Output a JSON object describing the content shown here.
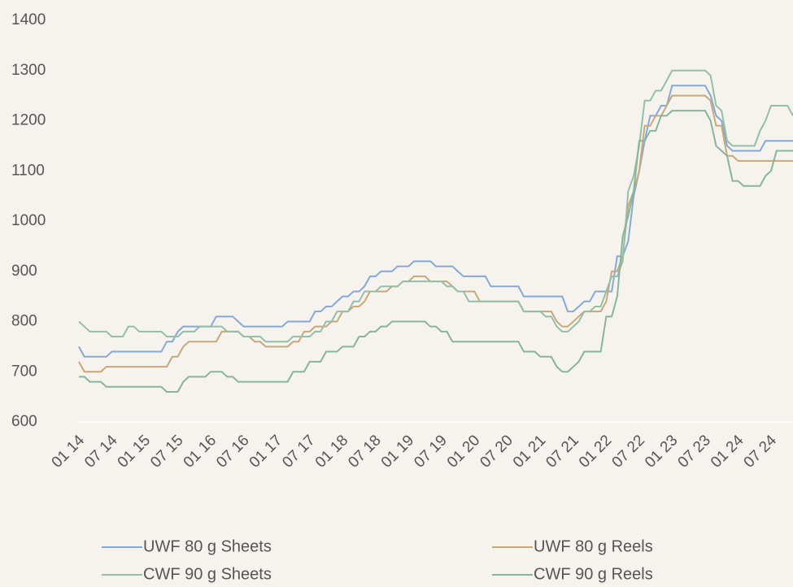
{
  "chart_data": {
    "type": "line",
    "categories": [
      "01 14",
      null,
      null,
      null,
      null,
      null,
      "07 14",
      null,
      null,
      null,
      null,
      null,
      "01 15",
      null,
      null,
      null,
      null,
      null,
      "07 15",
      null,
      null,
      null,
      null,
      null,
      "01 16",
      null,
      null,
      null,
      null,
      null,
      "07 16",
      null,
      null,
      null,
      null,
      null,
      "01 17",
      null,
      null,
      null,
      null,
      null,
      "07 17",
      null,
      null,
      null,
      null,
      null,
      "01 18",
      null,
      null,
      null,
      null,
      null,
      "07 18",
      null,
      null,
      null,
      null,
      null,
      "01 19",
      null,
      null,
      null,
      null,
      null,
      "07 19",
      null,
      null,
      null,
      null,
      null,
      "01 20",
      null,
      null,
      null,
      null,
      null,
      "07 20",
      null,
      null,
      null,
      null,
      null,
      "01 21",
      null,
      null,
      null,
      null,
      null,
      "07 21",
      null,
      null,
      null,
      null,
      null,
      "01 22",
      null,
      null,
      null,
      null,
      null,
      "07 22",
      null,
      null,
      null,
      null,
      null,
      "01 23",
      null,
      null,
      null,
      null,
      null,
      "07 23",
      null,
      null,
      null,
      null,
      null,
      "01 24",
      null,
      null,
      null,
      null,
      null,
      "07 24",
      null,
      null,
      null,
      null
    ],
    "series": [
      {
        "name": "UWF 80 g Sheets",
        "color": "#85a9d3",
        "values": [
          750,
          730,
          730,
          730,
          730,
          730,
          740,
          740,
          740,
          740,
          740,
          740,
          740,
          740,
          740,
          740,
          760,
          760,
          780,
          790,
          790,
          790,
          790,
          790,
          790,
          810,
          810,
          810,
          810,
          800,
          790,
          790,
          790,
          790,
          790,
          790,
          790,
          790,
          800,
          800,
          800,
          800,
          800,
          820,
          820,
          830,
          830,
          840,
          850,
          850,
          860,
          860,
          870,
          890,
          890,
          900,
          900,
          900,
          910,
          910,
          910,
          920,
          920,
          920,
          920,
          910,
          910,
          910,
          910,
          900,
          890,
          890,
          890,
          890,
          890,
          870,
          870,
          870,
          870,
          870,
          870,
          850,
          850,
          850,
          850,
          850,
          850,
          850,
          850,
          820,
          820,
          830,
          840,
          840,
          860,
          860,
          860,
          860,
          930,
          930,
          960,
          1050,
          1100,
          1160,
          1210,
          1210,
          1230,
          1230,
          1270,
          1270,
          1270,
          1270,
          1270,
          1270,
          1270,
          1250,
          1210,
          1200,
          1150,
          1140,
          1140,
          1140,
          1140,
          1140,
          1140,
          1160,
          1160,
          1160,
          1160,
          1160,
          1160
        ]
      },
      {
        "name": "UWF 80 g Reels",
        "color": "#c8a878",
        "values": [
          720,
          700,
          700,
          700,
          700,
          710,
          710,
          710,
          710,
          710,
          710,
          710,
          710,
          710,
          710,
          710,
          710,
          730,
          730,
          750,
          760,
          760,
          760,
          760,
          760,
          760,
          780,
          780,
          780,
          780,
          770,
          770,
          760,
          760,
          750,
          750,
          750,
          750,
          750,
          760,
          760,
          780,
          780,
          790,
          790,
          790,
          800,
          800,
          820,
          820,
          830,
          830,
          840,
          860,
          860,
          860,
          860,
          870,
          870,
          880,
          880,
          890,
          890,
          890,
          880,
          880,
          880,
          880,
          870,
          860,
          860,
          860,
          860,
          840,
          840,
          840,
          840,
          840,
          840,
          840,
          840,
          820,
          820,
          820,
          820,
          820,
          820,
          800,
          790,
          790,
          800,
          810,
          820,
          820,
          820,
          820,
          840,
          900,
          900,
          930,
          1030,
          1060,
          1100,
          1190,
          1190,
          1210,
          1210,
          1230,
          1250,
          1250,
          1250,
          1250,
          1250,
          1250,
          1250,
          1240,
          1190,
          1190,
          1130,
          1130,
          1120,
          1120,
          1120,
          1120,
          1120,
          1120,
          1120,
          1120,
          1120,
          1120,
          1120
        ]
      },
      {
        "name": "CWF 90 g Sheets",
        "color": "#93bfa9",
        "values": [
          800,
          790,
          780,
          780,
          780,
          780,
          770,
          770,
          770,
          790,
          790,
          780,
          780,
          780,
          780,
          780,
          770,
          770,
          770,
          780,
          780,
          780,
          790,
          790,
          790,
          790,
          790,
          780,
          780,
          780,
          770,
          770,
          770,
          770,
          760,
          760,
          760,
          760,
          760,
          770,
          770,
          770,
          770,
          780,
          780,
          800,
          800,
          820,
          820,
          820,
          840,
          840,
          860,
          860,
          860,
          870,
          870,
          870,
          870,
          880,
          880,
          880,
          880,
          880,
          880,
          880,
          880,
          870,
          870,
          860,
          860,
          840,
          840,
          840,
          840,
          840,
          840,
          840,
          840,
          840,
          840,
          820,
          820,
          820,
          820,
          810,
          810,
          790,
          780,
          780,
          790,
          800,
          820,
          820,
          830,
          830,
          860,
          890,
          890,
          920,
          1060,
          1090,
          1150,
          1240,
          1240,
          1260,
          1260,
          1280,
          1300,
          1300,
          1300,
          1300,
          1300,
          1300,
          1300,
          1290,
          1230,
          1220,
          1160,
          1150,
          1150,
          1150,
          1150,
          1150,
          1180,
          1200,
          1230,
          1230,
          1230,
          1230,
          1210
        ]
      },
      {
        "name": "CWF 90 g Reels",
        "color": "#87b49d",
        "values": [
          690,
          690,
          680,
          680,
          680,
          670,
          670,
          670,
          670,
          670,
          670,
          670,
          670,
          670,
          670,
          670,
          660,
          660,
          660,
          680,
          690,
          690,
          690,
          690,
          700,
          700,
          700,
          690,
          690,
          680,
          680,
          680,
          680,
          680,
          680,
          680,
          680,
          680,
          680,
          700,
          700,
          700,
          720,
          720,
          720,
          740,
          740,
          740,
          750,
          750,
          750,
          770,
          770,
          780,
          780,
          790,
          790,
          800,
          800,
          800,
          800,
          800,
          800,
          800,
          790,
          790,
          780,
          780,
          760,
          760,
          760,
          760,
          760,
          760,
          760,
          760,
          760,
          760,
          760,
          760,
          760,
          740,
          740,
          740,
          730,
          730,
          730,
          710,
          700,
          700,
          710,
          720,
          740,
          740,
          740,
          740,
          810,
          810,
          850,
          970,
          1010,
          1060,
          1160,
          1160,
          1180,
          1180,
          1210,
          1210,
          1220,
          1220,
          1220,
          1220,
          1220,
          1220,
          1220,
          1200,
          1150,
          1140,
          1130,
          1080,
          1080,
          1070,
          1070,
          1070,
          1070,
          1090,
          1100,
          1140,
          1140,
          1140,
          1140
        ]
      }
    ],
    "ylim": [
      600,
      1400
    ],
    "yticks": [
      600,
      700,
      800,
      900,
      1000,
      1100,
      1200,
      1300,
      1400
    ],
    "grid": false,
    "legend": "bottom"
  }
}
